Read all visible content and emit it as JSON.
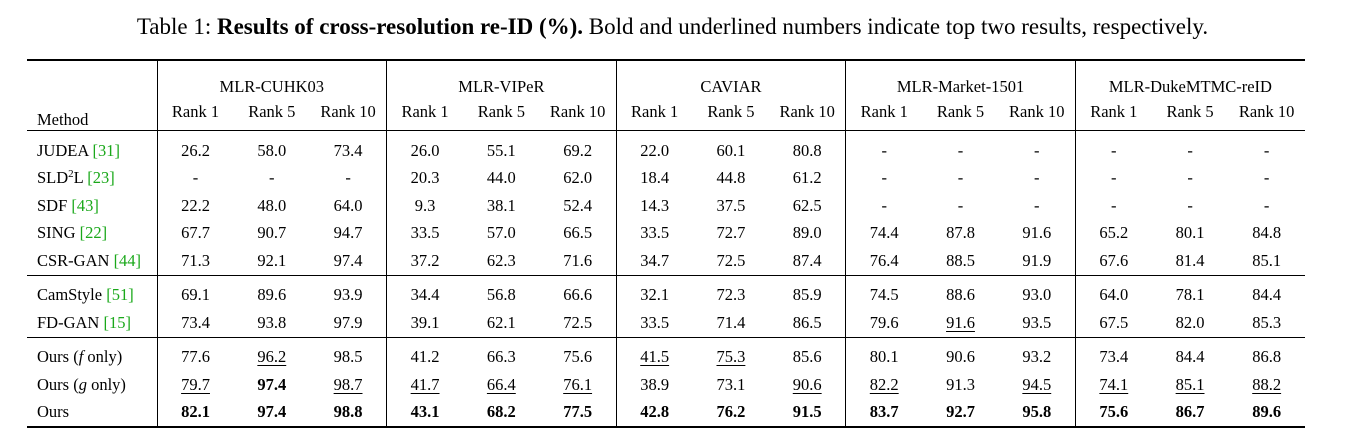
{
  "caption": {
    "prefix": "Table 1: ",
    "bold": "Results of cross-resolution re-ID (%).",
    "rest": " Bold and underlined numbers indicate top two results, respectively."
  },
  "header": {
    "method": "Method",
    "datasets": [
      "MLR-CUHK03",
      "MLR-VIPeR",
      "CAVIAR",
      "MLR-Market-1501",
      "MLR-DukeMTMC-reID"
    ],
    "ranks": [
      "Rank 1",
      "Rank 5",
      "Rank 10"
    ]
  },
  "groups": [
    [
      {
        "name": "JUDEA ",
        "cite": "[31]",
        "values": [
          "26.2",
          "58.0",
          "73.4",
          "26.0",
          "55.1",
          "69.2",
          "22.0",
          "60.1",
          "80.8",
          "-",
          "-",
          "-",
          "-",
          "-",
          "-"
        ],
        "styles": []
      },
      {
        "name": "SLD",
        "sup": "2",
        "name2": "L ",
        "cite": "[23]",
        "values": [
          "-",
          "-",
          "-",
          "20.3",
          "44.0",
          "62.0",
          "18.4",
          "44.8",
          "61.2",
          "-",
          "-",
          "-",
          "-",
          "-",
          "-"
        ],
        "styles": []
      },
      {
        "name": "SDF ",
        "cite": "[43]",
        "values": [
          "22.2",
          "48.0",
          "64.0",
          "9.3",
          "38.1",
          "52.4",
          "14.3",
          "37.5",
          "62.5",
          "-",
          "-",
          "-",
          "-",
          "-",
          "-"
        ],
        "styles": []
      },
      {
        "name": "SING ",
        "cite": "[22]",
        "values": [
          "67.7",
          "90.7",
          "94.7",
          "33.5",
          "57.0",
          "66.5",
          "33.5",
          "72.7",
          "89.0",
          "74.4",
          "87.8",
          "91.6",
          "65.2",
          "80.1",
          "84.8"
        ],
        "styles": []
      },
      {
        "name": "CSR-GAN ",
        "cite": "[44]",
        "values": [
          "71.3",
          "92.1",
          "97.4",
          "37.2",
          "62.3",
          "71.6",
          "34.7",
          "72.5",
          "87.4",
          "76.4",
          "88.5",
          "91.9",
          "67.6",
          "81.4",
          "85.1"
        ],
        "styles": []
      }
    ],
    [
      {
        "name": "CamStyle ",
        "cite": "[51]",
        "values": [
          "69.1",
          "89.6",
          "93.9",
          "34.4",
          "56.8",
          "66.6",
          "32.1",
          "72.3",
          "85.9",
          "74.5",
          "88.6",
          "93.0",
          "64.0",
          "78.1",
          "84.4"
        ],
        "styles": []
      },
      {
        "name": "FD-GAN ",
        "cite": "[15]",
        "values": [
          "73.4",
          "93.8",
          "97.9",
          "39.1",
          "62.1",
          "72.5",
          "33.5",
          "71.4",
          "86.5",
          "79.6",
          "91.6",
          "93.5",
          "67.5",
          "82.0",
          "85.3"
        ],
        "styles": [
          "",
          "",
          "",
          "",
          "",
          "",
          "",
          "",
          "",
          "",
          "u",
          "",
          "",
          "",
          ""
        ]
      }
    ],
    [
      {
        "name": "Ours (",
        "ital": "f",
        "name2": " only)",
        "values": [
          "77.6",
          "96.2",
          "98.5",
          "41.2",
          "66.3",
          "75.6",
          "41.5",
          "75.3",
          "85.6",
          "80.1",
          "90.6",
          "93.2",
          "73.4",
          "84.4",
          "86.8"
        ],
        "styles": [
          "",
          "u",
          "",
          "",
          "",
          "",
          "u",
          "u",
          "",
          "",
          "",
          "",
          "",
          "",
          ""
        ]
      },
      {
        "name": "Ours (",
        "ital": "g",
        "name2": " only)",
        "values": [
          "79.7",
          "97.4",
          "98.7",
          "41.7",
          "66.4",
          "76.1",
          "38.9",
          "73.1",
          "90.6",
          "82.2",
          "91.3",
          "94.5",
          "74.1",
          "85.1",
          "88.2"
        ],
        "styles": [
          "u",
          "b",
          "u",
          "u",
          "u",
          "u",
          "",
          "",
          "u",
          "u",
          "",
          "u",
          "u",
          "u",
          "u"
        ]
      },
      {
        "name": "Ours",
        "values": [
          "82.1",
          "97.4",
          "98.8",
          "43.1",
          "68.2",
          "77.5",
          "42.8",
          "76.2",
          "91.5",
          "83.7",
          "92.7",
          "95.8",
          "75.6",
          "86.7",
          "89.6"
        ],
        "styles": [
          "b",
          "b",
          "b",
          "b",
          "b",
          "b",
          "b",
          "b",
          "b",
          "b",
          "b",
          "b",
          "b",
          "b",
          "b"
        ]
      }
    ]
  ]
}
